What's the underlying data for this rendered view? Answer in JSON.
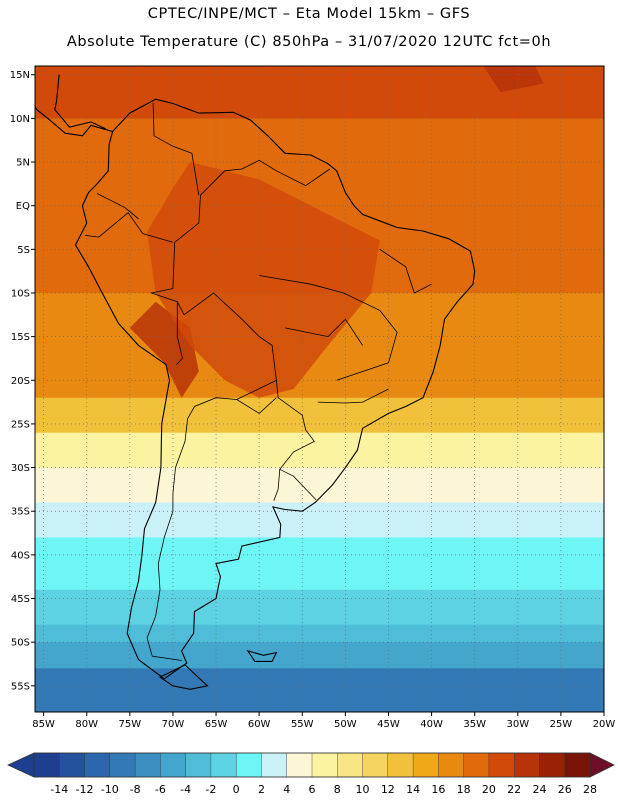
{
  "header": {
    "line1": "CPTEC/INPE/MCT –  Eta Model 15km – GFS",
    "line2": "Absolute Temperature (C) 850hPa – 31/07/2020 12UTC fct=0h"
  },
  "map": {
    "lat_range": [
      -58,
      16
    ],
    "lon_range": [
      -86,
      -20
    ],
    "lat_ticks": [
      {
        "lat": 15,
        "label": "15N"
      },
      {
        "lat": 10,
        "label": "10N"
      },
      {
        "lat": 5,
        "label": "5N"
      },
      {
        "lat": 0,
        "label": "EQ"
      },
      {
        "lat": -5,
        "label": "5S"
      },
      {
        "lat": -10,
        "label": "10S"
      },
      {
        "lat": -15,
        "label": "15S"
      },
      {
        "lat": -20,
        "label": "20S"
      },
      {
        "lat": -25,
        "label": "25S"
      },
      {
        "lat": -30,
        "label": "30S"
      },
      {
        "lat": -35,
        "label": "35S"
      },
      {
        "lat": -40,
        "label": "40S"
      },
      {
        "lat": -45,
        "label": "45S"
      },
      {
        "lat": -50,
        "label": "50S"
      },
      {
        "lat": -55,
        "label": "55S"
      }
    ],
    "lon_ticks": [
      {
        "lon": -85,
        "label": "85W"
      },
      {
        "lon": -80,
        "label": "80W"
      },
      {
        "lon": -75,
        "label": "75W"
      },
      {
        "lon": -70,
        "label": "70W"
      },
      {
        "lon": -65,
        "label": "65W"
      },
      {
        "lon": -60,
        "label": "60W"
      },
      {
        "lon": -55,
        "label": "55W"
      },
      {
        "lon": -50,
        "label": "50W"
      },
      {
        "lon": -45,
        "label": "45W"
      },
      {
        "lon": -40,
        "label": "40W"
      },
      {
        "lon": -35,
        "label": "35W"
      },
      {
        "lon": -30,
        "label": "30W"
      },
      {
        "lon": -25,
        "label": "25W"
      },
      {
        "lon": -20,
        "label": "20W"
      }
    ],
    "temperature_bands": [
      {
        "min_lat": 10,
        "value": 20
      },
      {
        "min_lat": -10,
        "value": 18
      },
      {
        "min_lat": -22,
        "value": 16
      },
      {
        "min_lat": -26,
        "value": 12
      },
      {
        "min_lat": -30,
        "value": 6
      },
      {
        "min_lat": -34,
        "value": 4
      },
      {
        "min_lat": -38,
        "value": 2
      },
      {
        "min_lat": -44,
        "value": 0
      },
      {
        "min_lat": -48,
        "value": -2
      },
      {
        "min_lat": -50,
        "value": -4
      },
      {
        "min_lat": -53,
        "value": -6
      },
      {
        "min_lat": -58,
        "value": -10
      }
    ],
    "warm_regions": [
      {
        "value": 22,
        "points": [
          [
            -72,
            -11
          ],
          [
            -68,
            -14
          ],
          [
            -67,
            -19
          ],
          [
            -69,
            -22
          ],
          [
            -71,
            -18
          ],
          [
            -75,
            -14
          ]
        ]
      },
      {
        "value": 20,
        "points": [
          [
            -68,
            5
          ],
          [
            -60,
            3
          ],
          [
            -52,
            -1
          ],
          [
            -46,
            -4
          ],
          [
            -47,
            -10
          ],
          [
            -52,
            -16
          ],
          [
            -56,
            -21
          ],
          [
            -60,
            -22
          ],
          [
            -64,
            -20
          ],
          [
            -68,
            -16
          ],
          [
            -72,
            -10
          ],
          [
            -73,
            -3
          ],
          [
            -70,
            2
          ]
        ]
      },
      {
        "value": 22,
        "points": [
          [
            -34,
            16
          ],
          [
            -28,
            16
          ],
          [
            -27,
            14
          ],
          [
            -32,
            13
          ]
        ]
      }
    ]
  },
  "colorbar": {
    "colors": [
      "#1e3f8f",
      "#24529e",
      "#2c66ad",
      "#3279b5",
      "#3b8fc1",
      "#45a6cd",
      "#4fbcd8",
      "#5dd2e2",
      "#6ef5f6",
      "#cbf1f8",
      "#fcf6d6",
      "#fbf3a0",
      "#f8e684",
      "#f5d560",
      "#f2c13b",
      "#efa818",
      "#e88a12",
      "#e06a0c",
      "#d14a0a",
      "#b73308",
      "#9a2006",
      "#7a1408"
    ],
    "under_color": "#1e3f8f",
    "over_color": "#6e0d28",
    "labels": [
      "-14",
      "-12",
      "-10",
      "-8",
      "-6",
      "-4",
      "-2",
      "0",
      "2",
      "4",
      "6",
      "8",
      "10",
      "12",
      "14",
      "16",
      "18",
      "20",
      "22",
      "24",
      "26",
      "28"
    ]
  }
}
